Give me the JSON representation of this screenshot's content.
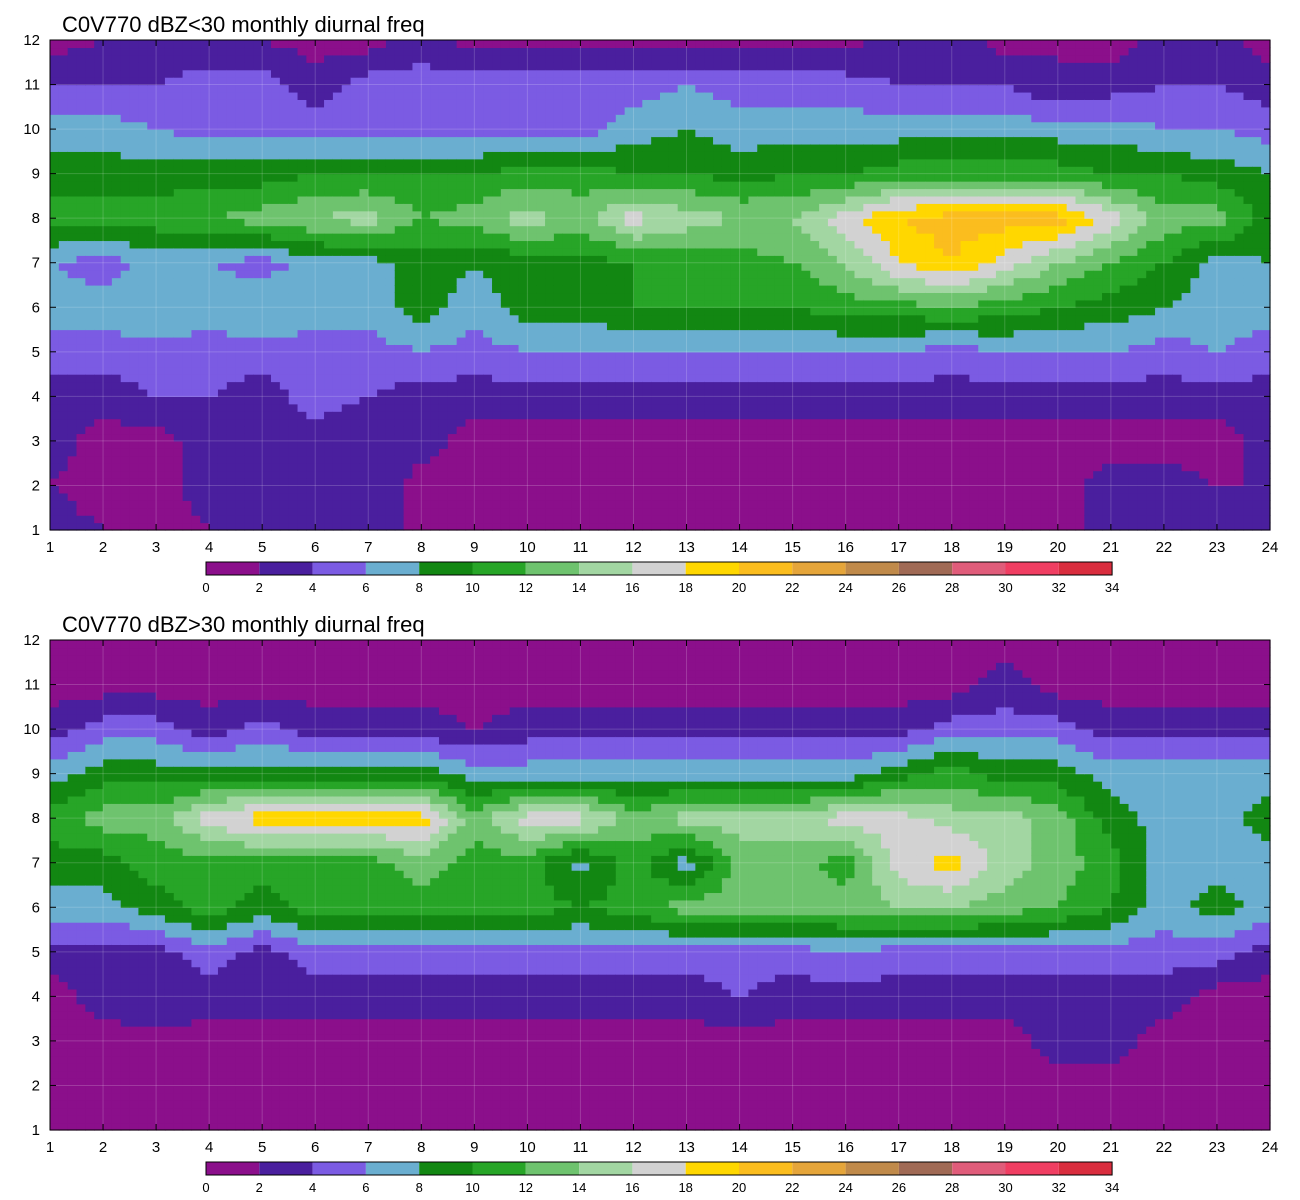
{
  "colorbar": {
    "levels": [
      0,
      2,
      4,
      6,
      8,
      10,
      12,
      14,
      16,
      18,
      20,
      22,
      24,
      26,
      28,
      30,
      32,
      34
    ],
    "colors": [
      "#8b0f8b",
      "#4a1f9e",
      "#7b5be3",
      "#6aaed0",
      "#128712",
      "#27a527",
      "#6ec36e",
      "#a2d6a2",
      "#d2d2d2",
      "#ffd700",
      "#fbbd1e",
      "#e5a53a",
      "#c08a4a",
      "#a06a55",
      "#e05c7a",
      "#f03e62",
      "#d92d3e"
    ],
    "contour_line_color": "#f0b23c"
  },
  "chart_data": [
    {
      "type": "heatmap",
      "title": "C0V770 dBZ<30 monthly diurnal freq",
      "xlabel": "",
      "ylabel": "",
      "x": [
        1,
        2,
        3,
        4,
        5,
        6,
        7,
        8,
        9,
        10,
        11,
        12,
        13,
        14,
        15,
        16,
        17,
        18,
        19,
        20,
        21,
        22,
        23,
        24
      ],
      "y": [
        1,
        2,
        3,
        4,
        5,
        6,
        7,
        8,
        9,
        10,
        11,
        12
      ],
      "xlim": [
        1,
        24
      ],
      "ylim": [
        1,
        12
      ],
      "xticks": [
        "1",
        "2",
        "3",
        "4",
        "5",
        "6",
        "7",
        "8",
        "9",
        "10",
        "11",
        "12",
        "13",
        "14",
        "15",
        "16",
        "17",
        "18",
        "19",
        "20",
        "21",
        "22",
        "23",
        "24"
      ],
      "yticks": [
        "1",
        "2",
        "3",
        "4",
        "5",
        "6",
        "7",
        "8",
        "9",
        "10",
        "11",
        "12"
      ],
      "grid": true,
      "z": [
        [
          3,
          2,
          1,
          2,
          3,
          3,
          4,
          1,
          1,
          1,
          1,
          1,
          1,
          1,
          1,
          1,
          1,
          1,
          1,
          1,
          3,
          3,
          2,
          3
        ],
        [
          2,
          1,
          1,
          3,
          3,
          3,
          4,
          1,
          1,
          1,
          1,
          1,
          1,
          1,
          1,
          1,
          1,
          1,
          1,
          1,
          3,
          3,
          2,
          2
        ],
        [
          3,
          1,
          1,
          3,
          3,
          3,
          2,
          3,
          1,
          1,
          1,
          1,
          1,
          1,
          1,
          1,
          1,
          1,
          1,
          1,
          1,
          1,
          1,
          3
        ],
        [
          3,
          3,
          4,
          4,
          3,
          5,
          4,
          3,
          3,
          3,
          3,
          3,
          3,
          3,
          3,
          3,
          3,
          3,
          3,
          3,
          3,
          3,
          3,
          3
        ],
        [
          5,
          5,
          5,
          5,
          5,
          5,
          5,
          6,
          5,
          6,
          6,
          6,
          6,
          6,
          6,
          6,
          6,
          5,
          6,
          6,
          6,
          5,
          6,
          5
        ],
        [
          7,
          7,
          8,
          7,
          8,
          7,
          7,
          9,
          7,
          9,
          9,
          10,
          10,
          10,
          10,
          11,
          11,
          12,
          11,
          10,
          9,
          8,
          7,
          7
        ],
        [
          6,
          5,
          7,
          6,
          5,
          7,
          7,
          9,
          8,
          9,
          9,
          10,
          11,
          11,
          12,
          14,
          18,
          20,
          17,
          14,
          12,
          10,
          7,
          8
        ],
        [
          11,
          11,
          11,
          12,
          13,
          14,
          15,
          12,
          13,
          15,
          13,
          17,
          15,
          14,
          14,
          17,
          20,
          21,
          21,
          21,
          17,
          13,
          13,
          9
        ],
        [
          9,
          9,
          9,
          9,
          9,
          10,
          10,
          10,
          10,
          11,
          11,
          10,
          10,
          9,
          10,
          10,
          11,
          11,
          11,
          11,
          10,
          10,
          9,
          8
        ],
        [
          7,
          7,
          6,
          5,
          5,
          5,
          5,
          5,
          5,
          5,
          5,
          7,
          8,
          7,
          7,
          7,
          7,
          7,
          7,
          7,
          7,
          6,
          6,
          5
        ],
        [
          4,
          4,
          4,
          5,
          5,
          3,
          5,
          5,
          5,
          5,
          5,
          5,
          6,
          5,
          5,
          5,
          4,
          4,
          4,
          2,
          3,
          4,
          4,
          3
        ],
        [
          1,
          2,
          3,
          2,
          2,
          1,
          1,
          3,
          1,
          1,
          1,
          1,
          1,
          1,
          1,
          1,
          3,
          3,
          1,
          2,
          1,
          3,
          3,
          1
        ]
      ]
    },
    {
      "type": "heatmap",
      "title": "C0V770 dBZ>30 monthly diurnal freq",
      "xlabel": "",
      "ylabel": "",
      "x": [
        1,
        2,
        3,
        4,
        5,
        6,
        7,
        8,
        9,
        10,
        11,
        12,
        13,
        14,
        15,
        16,
        17,
        18,
        19,
        20,
        21,
        22,
        23,
        24
      ],
      "y": [
        1,
        2,
        3,
        4,
        5,
        6,
        7,
        8,
        9,
        10,
        11,
        12
      ],
      "xlim": [
        1,
        24
      ],
      "ylim": [
        1,
        12
      ],
      "xticks": [
        "1",
        "2",
        "3",
        "4",
        "5",
        "6",
        "7",
        "8",
        "9",
        "10",
        "11",
        "12",
        "13",
        "14",
        "15",
        "16",
        "17",
        "18",
        "19",
        "20",
        "21",
        "22",
        "23",
        "24"
      ],
      "yticks": [
        "1",
        "2",
        "3",
        "4",
        "5",
        "6",
        "7",
        "8",
        "9",
        "10",
        "11",
        "12"
      ],
      "grid": true,
      "z": [
        [
          1,
          1,
          1,
          1,
          1,
          1,
          1,
          1,
          1,
          1,
          1,
          1,
          1,
          1,
          1,
          1,
          1,
          1,
          1,
          1,
          1,
          1,
          1,
          1
        ],
        [
          1,
          1,
          1,
          1,
          1,
          1,
          1,
          1,
          1,
          1,
          1,
          1,
          1,
          1,
          1,
          1,
          1,
          1,
          1,
          1,
          1,
          1,
          1,
          1
        ],
        [
          1,
          1,
          1,
          1,
          1,
          1,
          1,
          1,
          1,
          1,
          1,
          1,
          1,
          1,
          1,
          1,
          1,
          1,
          1,
          3,
          3,
          1,
          1,
          1
        ],
        [
          1,
          3,
          4,
          3,
          3,
          3,
          3,
          3,
          3,
          3,
          3,
          3,
          3,
          4,
          3,
          3,
          3,
          3,
          3,
          3,
          3,
          3,
          1,
          1
        ],
        [
          3,
          3,
          3,
          5,
          3,
          5,
          5,
          5,
          5,
          5,
          5,
          5,
          5,
          5,
          5,
          6,
          5,
          5,
          5,
          5,
          5,
          5,
          5,
          3
        ],
        [
          7,
          7,
          9,
          11,
          9,
          11,
          11,
          11,
          11,
          11,
          10,
          11,
          13,
          13,
          13,
          13,
          14,
          14,
          13,
          12,
          10,
          7,
          9,
          7
        ],
        [
          9,
          9,
          11,
          11,
          11,
          11,
          11,
          13,
          11,
          11,
          7,
          11,
          7,
          13,
          13,
          11,
          17,
          19,
          15,
          13,
          11,
          7,
          7,
          7
        ],
        [
          11,
          13,
          13,
          17,
          19,
          19,
          19,
          19,
          13,
          17,
          17,
          13,
          15,
          15,
          15,
          17,
          17,
          15,
          15,
          13,
          9,
          7,
          7,
          9
        ],
        [
          7,
          9,
          9,
          9,
          9,
          9,
          9,
          9,
          7,
          7,
          7,
          7,
          7,
          7,
          7,
          7,
          9,
          11,
          9,
          9,
          7,
          7,
          7,
          7
        ],
        [
          3,
          5,
          5,
          3,
          5,
          3,
          3,
          3,
          2,
          3,
          3,
          3,
          3,
          3,
          3,
          3,
          3,
          5,
          5,
          5,
          3,
          3,
          3,
          3
        ],
        [
          1,
          1,
          1,
          1,
          1,
          1,
          1,
          1,
          1,
          1,
          1,
          1,
          1,
          1,
          1,
          1,
          1,
          1,
          3,
          1,
          1,
          1,
          1,
          1
        ],
        [
          1,
          1,
          1,
          1,
          1,
          1,
          1,
          1,
          1,
          1,
          1,
          1,
          1,
          1,
          1,
          1,
          1,
          1,
          1,
          1,
          1,
          1,
          1,
          1
        ]
      ]
    }
  ]
}
